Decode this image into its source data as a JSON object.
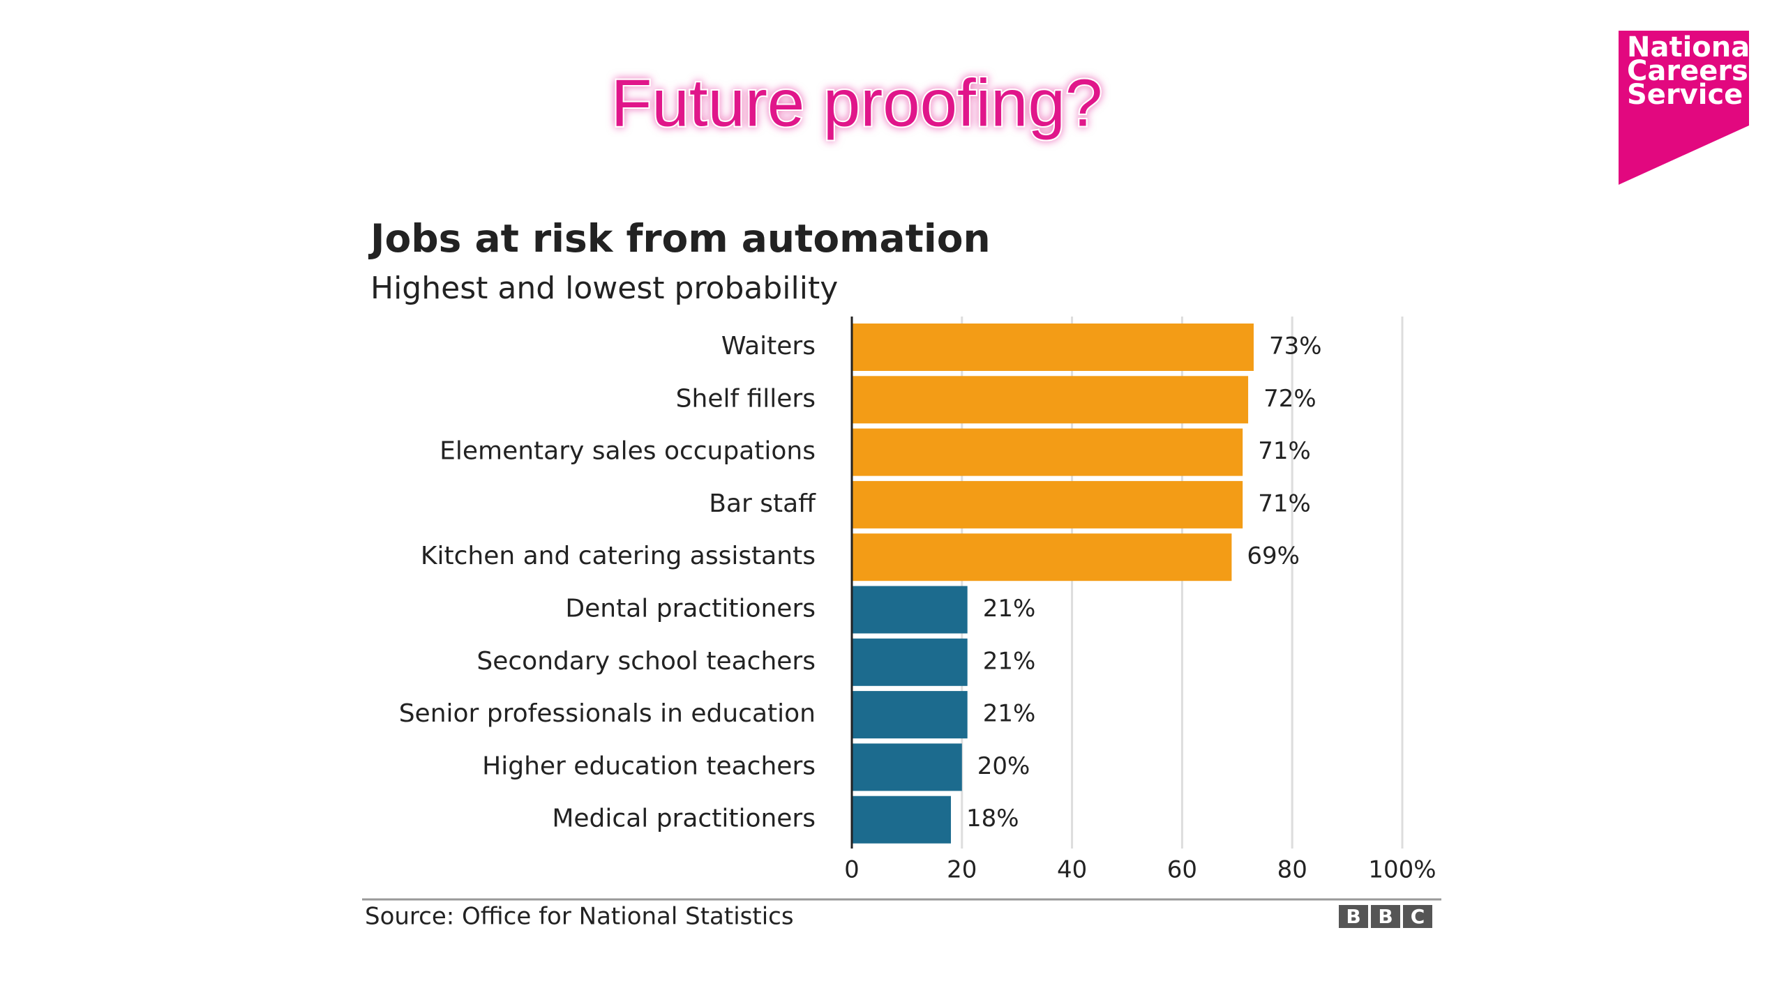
{
  "slide_title": "Future proofing?",
  "logo": {
    "lines": [
      "National",
      "Careers",
      "Service"
    ]
  },
  "chart_data": {
    "type": "bar",
    "orientation": "horizontal",
    "title": "Jobs at risk from automation",
    "subtitle": "Highest and lowest probability",
    "categories": [
      "Waiters",
      "Shelf fillers",
      "Elementary sales occupations",
      "Bar staff",
      "Kitchen and catering assistants",
      "Dental practitioners",
      "Secondary school teachers",
      "Senior professionals in education",
      "Higher education teachers",
      "Medical practitioners"
    ],
    "values": [
      73,
      72,
      71,
      71,
      69,
      21,
      21,
      21,
      20,
      18
    ],
    "value_labels": [
      "73%",
      "72%",
      "71%",
      "71%",
      "69%",
      "21%",
      "21%",
      "21%",
      "20%",
      "18%"
    ],
    "colors": [
      "#f39c16",
      "#f39c16",
      "#f39c16",
      "#f39c16",
      "#f39c16",
      "#1c6b8e",
      "#1c6b8e",
      "#1c6b8e",
      "#1c6b8e",
      "#1c6b8e"
    ],
    "xlim": [
      0,
      100
    ],
    "xticks": [
      0,
      20,
      40,
      60,
      80,
      {
        "value": 100,
        "label": "100%"
      }
    ],
    "grid": true,
    "source": "Source: Office for National Statistics",
    "credit": [
      "B",
      "B",
      "C"
    ]
  }
}
